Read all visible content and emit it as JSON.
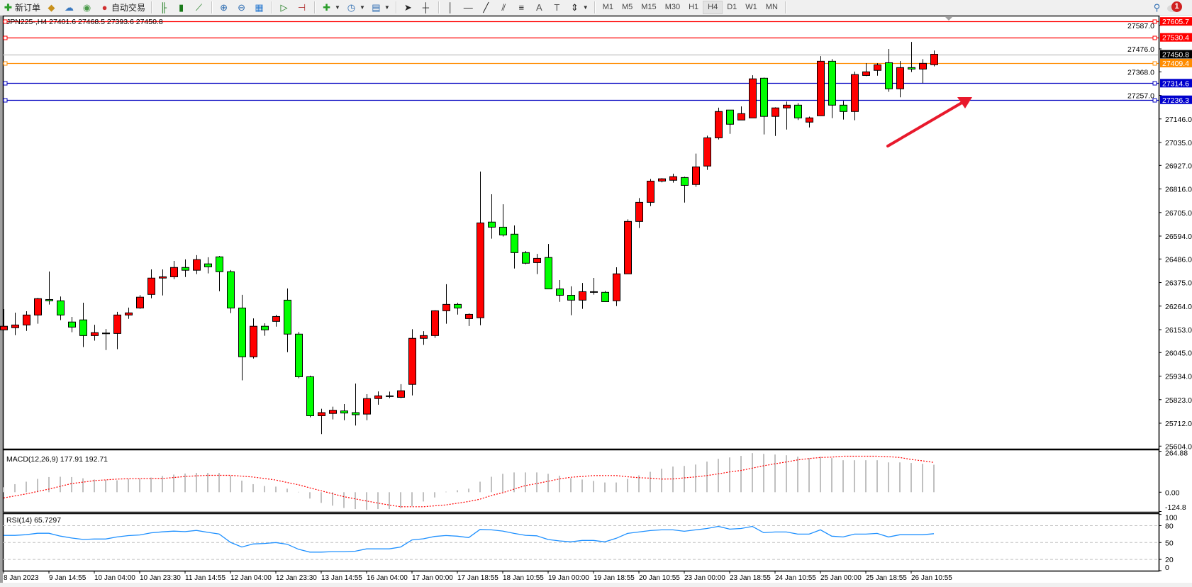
{
  "toolbar": {
    "new_order": "新订单",
    "auto_trading": "自动交易",
    "timeframes": [
      "M1",
      "M5",
      "M15",
      "M30",
      "H1",
      "H4",
      "D1",
      "W1",
      "MN"
    ],
    "active_timeframe": "H4",
    "notification_count": "1",
    "icons": [
      "new-order-icon",
      "history-icon",
      "market-watch-icon",
      "signals-icon",
      "auto-trading-icon",
      "bar-chart-icon",
      "candlestick-icon",
      "line-chart-icon",
      "zoom-in-icon",
      "zoom-out-icon",
      "tile-windows-icon",
      "auto-scroll-icon",
      "chart-shift-icon",
      "indicators-icon",
      "periods-clock-icon",
      "templates-icon",
      "cursor-icon",
      "crosshair-icon",
      "vertical-line-icon",
      "horizontal-line-icon",
      "trendline-icon",
      "equidistant-channel-icon",
      "fibonacci-icon",
      "text-icon",
      "text-label-icon",
      "arrows-icon",
      "search-icon",
      "notification-icon"
    ]
  },
  "chart": {
    "header": "JPN225-,H4  27401.6 27468.5 27393.6 27450.8",
    "colors": {
      "bull": "#ff0000",
      "bear": "#00ff00",
      "grid": "#c0c0c0",
      "signal": "#ff0000",
      "rsi": "#1e90ff",
      "arrow": "#e8192c"
    },
    "price_ticks": [
      "27587.0",
      "27476.0",
      "27368.0",
      "27257.0",
      "27146.0",
      "27035.0",
      "26927.0",
      "26816.0",
      "26705.0",
      "26594.0",
      "26486.0",
      "26375.0",
      "26264.0",
      "26153.0",
      "26045.0",
      "25934.0",
      "25823.0",
      "25712.0",
      "25604.0"
    ],
    "levels": [
      {
        "price": "27605.7",
        "color": "#ff0000",
        "label_bg": "#ff0000"
      },
      {
        "price": "27530.4",
        "color": "#ff0000",
        "label_bg": "#ff0000"
      },
      {
        "price": "27450.8",
        "color": "#c0c0c0",
        "label_bg": "#000000"
      },
      {
        "price": "27409.4",
        "color": "#ff8c00",
        "label_bg": "#ff8c00"
      },
      {
        "price": "27314.6",
        "color": "#0000c0",
        "label_bg": "#0000cd"
      },
      {
        "price": "27236.3",
        "color": "#0000c0",
        "label_bg": "#0000cd"
      }
    ],
    "time_labels": [
      "8 Jan 2023",
      "9 Jan 14:55",
      "10 Jan 04:00",
      "10 Jan 23:30",
      "11 Jan 14:55",
      "12 Jan 04:00",
      "12 Jan 23:30",
      "13 Jan 14:55",
      "16 Jan 04:00",
      "17 Jan 00:00",
      "17 Jan 18:55",
      "18 Jan 10:55",
      "19 Jan 00:00",
      "19 Jan 18:55",
      "20 Jan 10:55",
      "23 Jan 00:00",
      "23 Jan 18:55",
      "24 Jan 10:55",
      "25 Jan 00:00",
      "25 Jan 18:55",
      "26 Jan 10:55"
    ]
  },
  "chart_data": {
    "type": "candlestick",
    "symbol": "JPN225-",
    "timeframe": "H4",
    "ohlc": [
      [
        26152,
        26250,
        26150,
        26169
      ],
      [
        26162,
        26233,
        26127,
        26175
      ],
      [
        26175,
        26240,
        26147,
        26222
      ],
      [
        26222,
        26303,
        26181,
        26299
      ],
      [
        26295,
        26427,
        26271,
        26289
      ],
      [
        26289,
        26309,
        26198,
        26222
      ],
      [
        26189,
        26213,
        26141,
        26165
      ],
      [
        26199,
        26280,
        26071,
        26125
      ],
      [
        26125,
        26176,
        26101,
        26139
      ],
      [
        26134,
        26156,
        26057,
        26137
      ],
      [
        26135,
        26237,
        26061,
        26222
      ],
      [
        26222,
        26257,
        26204,
        26232
      ],
      [
        26255,
        26316,
        26251,
        26306
      ],
      [
        26319,
        26437,
        26301,
        26396
      ],
      [
        26396,
        26437,
        26314,
        26402
      ],
      [
        26402,
        26477,
        26391,
        26446
      ],
      [
        26446,
        26484,
        26401,
        26433
      ],
      [
        26433,
        26504,
        26415,
        26483
      ],
      [
        26463,
        26494,
        26418,
        26449
      ],
      [
        26496,
        26500,
        26334,
        26426
      ],
      [
        26426,
        26434,
        26231,
        26255
      ],
      [
        26255,
        26317,
        25914,
        26025
      ],
      [
        26025,
        26206,
        26017,
        26169
      ],
      [
        26169,
        26183,
        26124,
        26152
      ],
      [
        26192,
        26223,
        26167,
        26215
      ],
      [
        26292,
        26347,
        26047,
        26132
      ],
      [
        26132,
        26142,
        25924,
        25931
      ],
      [
        25931,
        25936,
        25740,
        25747
      ],
      [
        25747,
        25780,
        25661,
        25762
      ],
      [
        25758,
        25790,
        25730,
        25773
      ],
      [
        25770,
        25802,
        25726,
        25760
      ],
      [
        25762,
        25899,
        25701,
        25752
      ],
      [
        25755,
        25849,
        25726,
        25828
      ],
      [
        25828,
        25862,
        25799,
        25841
      ],
      [
        25840,
        25861,
        25830,
        25841
      ],
      [
        25834,
        25896,
        25830,
        25865
      ],
      [
        25895,
        26155,
        25843,
        26112
      ],
      [
        26112,
        26146,
        26081,
        26125
      ],
      [
        26125,
        26245,
        26114,
        26242
      ],
      [
        26242,
        26367,
        26181,
        26272
      ],
      [
        26272,
        26280,
        26224,
        26255
      ],
      [
        26205,
        26230,
        26170,
        26225
      ],
      [
        26209,
        26898,
        26174,
        26656
      ],
      [
        26660,
        26791,
        26582,
        26636
      ],
      [
        26636,
        26744,
        26592,
        26599
      ],
      [
        26603,
        26644,
        26441,
        26516
      ],
      [
        26516,
        26524,
        26461,
        26466
      ],
      [
        26469,
        26510,
        26415,
        26489
      ],
      [
        26493,
        26557,
        26345,
        26345
      ],
      [
        26345,
        26387,
        26284,
        26315
      ],
      [
        26315,
        26357,
        26221,
        26292
      ],
      [
        26292,
        26373,
        26251,
        26332
      ],
      [
        26331,
        26397,
        26318,
        26332
      ],
      [
        26329,
        26335,
        26285,
        26285
      ],
      [
        26289,
        26447,
        26264,
        26416
      ],
      [
        26416,
        26673,
        26416,
        26663
      ],
      [
        26663,
        26773,
        26632,
        26753
      ],
      [
        26753,
        26863,
        26735,
        26853
      ],
      [
        26853,
        26867,
        26847,
        26864
      ],
      [
        26857,
        26888,
        26846,
        26874
      ],
      [
        26870,
        26874,
        26752,
        26833
      ],
      [
        26837,
        26983,
        26826,
        26920
      ],
      [
        26924,
        27067,
        26906,
        27057
      ],
      [
        27057,
        27199,
        27049,
        27181
      ],
      [
        27188,
        27188,
        27076,
        27121
      ],
      [
        27141,
        27205,
        27141,
        27171
      ],
      [
        27151,
        27352,
        27151,
        27335
      ],
      [
        27338,
        27341,
        27073,
        27158
      ],
      [
        27158,
        27201,
        27066,
        27198
      ],
      [
        27198,
        27228,
        27096,
        27211
      ],
      [
        27211,
        27221,
        27141,
        27151
      ],
      [
        27131,
        27157,
        27106,
        27151
      ],
      [
        27161,
        27442,
        27161,
        27418
      ],
      [
        27418,
        27428,
        27150,
        27211
      ],
      [
        27211,
        27231,
        27143,
        27181
      ],
      [
        27181,
        27369,
        27140,
        27355
      ],
      [
        27351,
        27409,
        27348,
        27368
      ],
      [
        27375,
        27409,
        27350,
        27401
      ],
      [
        27411,
        27476,
        27274,
        27288
      ],
      [
        27288,
        27419,
        27248,
        27388
      ],
      [
        27388,
        27509,
        27367,
        27381
      ],
      [
        27381,
        27428,
        27315,
        27408
      ],
      [
        27401.6,
        27468.5,
        27393.6,
        27450.8
      ]
    ],
    "ylim": [
      25604.0,
      27605.7
    ],
    "macd": {
      "label": "MACD(12,26,9) 177.91 192.71",
      "ticks": [
        "264.88",
        "0.00",
        "-124.8"
      ],
      "histogram": [
        32,
        52,
        68,
        86,
        98,
        100,
        98,
        90,
        82,
        79,
        77,
        86,
        86,
        95,
        105,
        114,
        121,
        125,
        125,
        125,
        107,
        75,
        52,
        40,
        36,
        23,
        2,
        -41,
        -69,
        -87,
        -102,
        -109,
        -114,
        -109,
        -109,
        -103,
        -91,
        -60,
        -34,
        3,
        13,
        23,
        68,
        100,
        119,
        128,
        128,
        128,
        119,
        107,
        91,
        82,
        73,
        63,
        63,
        86,
        109,
        132,
        152,
        166,
        170,
        179,
        198,
        216,
        225,
        235,
        253,
        248,
        244,
        239,
        230,
        221,
        230,
        221,
        207,
        207,
        207,
        207,
        193,
        193,
        189,
        184,
        177.91
      ],
      "signal": [
        -37,
        -24,
        -11,
        5,
        20,
        38,
        56,
        65,
        75,
        80,
        85,
        87,
        88,
        89,
        89,
        95,
        102,
        106,
        109,
        109,
        109,
        104,
        98,
        89,
        79,
        63,
        48,
        28,
        9,
        -10,
        -29,
        -43,
        -57,
        -70,
        -83,
        -94,
        -94,
        -94,
        -88,
        -82,
        -71,
        -60,
        -45,
        -21,
        -3,
        20,
        43,
        56,
        71,
        86,
        97,
        102,
        108,
        108,
        108,
        100,
        94,
        91,
        85,
        86,
        93,
        99,
        108,
        119,
        131,
        141,
        156,
        171,
        184,
        196,
        209,
        218,
        225,
        227,
        233,
        233,
        233,
        233,
        230,
        225,
        212,
        203,
        192.71
      ]
    },
    "rsi": {
      "label": "RSI(14) 65.7297",
      "ticks": [
        "100",
        "80",
        "50",
        "20",
        "0"
      ],
      "levels": [
        80,
        50,
        20
      ],
      "values": [
        62.7,
        62.7,
        64,
        66.5,
        66.5,
        61.4,
        58,
        55.5,
        56.3,
        56.3,
        60,
        62.3,
        63.5,
        67.3,
        69,
        70.3,
        69.4,
        71.5,
        68.2,
        65.2,
        50.4,
        42,
        47.5,
        48.3,
        50,
        47,
        38,
        33,
        33,
        33.8,
        33.8,
        34.6,
        38.8,
        38.8,
        38.8,
        42,
        54.6,
        56.7,
        60.8,
        62.5,
        61.3,
        58.8,
        73.3,
        72.5,
        70.4,
        66.3,
        62.9,
        62,
        55.4,
        52.9,
        51.3,
        53.8,
        53.8,
        51.3,
        57.5,
        66.3,
        68.8,
        71.3,
        72.5,
        72.5,
        70,
        72.5,
        75,
        78.8,
        73.8,
        75,
        78.8,
        67.5,
        68.8,
        68.8,
        65,
        65,
        72.5,
        61.3,
        60,
        65,
        65,
        66.3,
        60,
        63.8,
        63.8,
        63.8,
        65.7297
      ]
    }
  }
}
